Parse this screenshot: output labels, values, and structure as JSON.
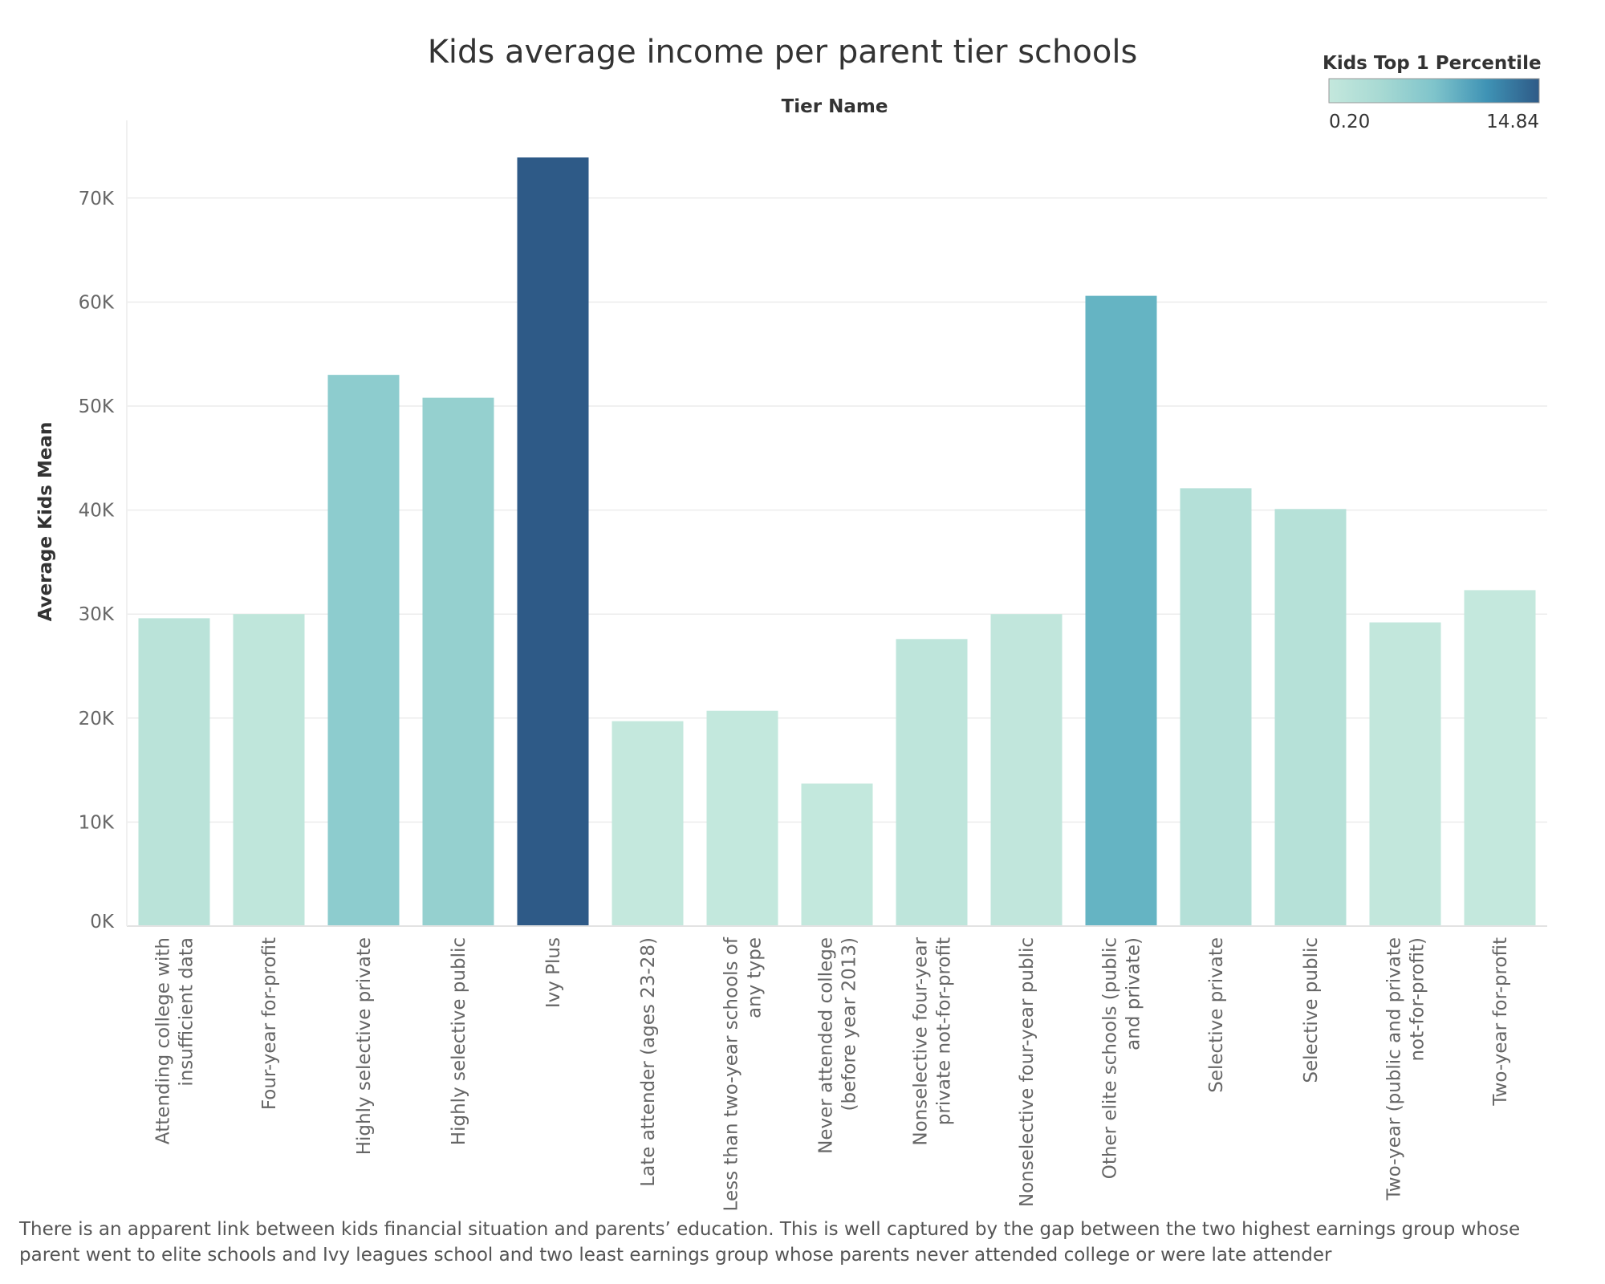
{
  "chart_data": {
    "type": "bar",
    "title": "Kids average income per parent tier schools",
    "column_header": "Tier Name",
    "xlabel": "",
    "ylabel": "Average Kids Mean",
    "ylim": [
      0,
      77700
    ],
    "yticks": [
      0,
      10000,
      20000,
      30000,
      40000,
      50000,
      60000,
      70000
    ],
    "ytick_labels": [
      "0K",
      "10K",
      "20K",
      "30K",
      "40K",
      "50K",
      "60K",
      "70K"
    ],
    "grid": "horizontal",
    "categories": [
      [
        "Attending college with",
        "insufficient data"
      ],
      [
        "Four-year for-profit"
      ],
      [
        "Highly selective private"
      ],
      [
        "Highly selective public"
      ],
      [
        "Ivy Plus"
      ],
      [
        "Late attender (ages 23-28)"
      ],
      [
        "Less than two-year schools of",
        "any type"
      ],
      [
        "Never attended college",
        "(before year 2013)"
      ],
      [
        "Nonselective four-year",
        "private not-for-profit"
      ],
      [
        "Nonselective four-year public"
      ],
      [
        "Other elite schools (public",
        "and private)"
      ],
      [
        "Selective private"
      ],
      [
        "Selective public"
      ],
      [
        "Two-year (public and private",
        "not-for-profit)"
      ],
      [
        "Two-year for-profit"
      ]
    ],
    "values": [
      29600,
      30000,
      53000,
      50800,
      73900,
      19700,
      20700,
      13700,
      27600,
      30000,
      60600,
      42100,
      40100,
      29200,
      32300
    ],
    "color_values": [
      1.5,
      0.8,
      6.2,
      5.5,
      14.84,
      0.2,
      0.3,
      0.3,
      0.9,
      0.6,
      9.5,
      2.2,
      2.0,
      0.4,
      0.2
    ],
    "legend": {
      "title": "Kids Top 1 Percentile",
      "min_label": "0.20",
      "max_label": "14.84",
      "min": 0.2,
      "max": 14.84,
      "placement": "top-right",
      "colors": [
        "#c4e8dd",
        "#a7d9d3",
        "#7fc4cb",
        "#4fa7bc",
        "#2e5a87"
      ]
    }
  },
  "footnote": "There is an apparent link between kids financial situation and parents’ education. This is well captured by the gap between the two highest earnings group whose parent went to elite schools and Ivy leagues school and two least  earnings group whose parents never attended college or were late attender"
}
